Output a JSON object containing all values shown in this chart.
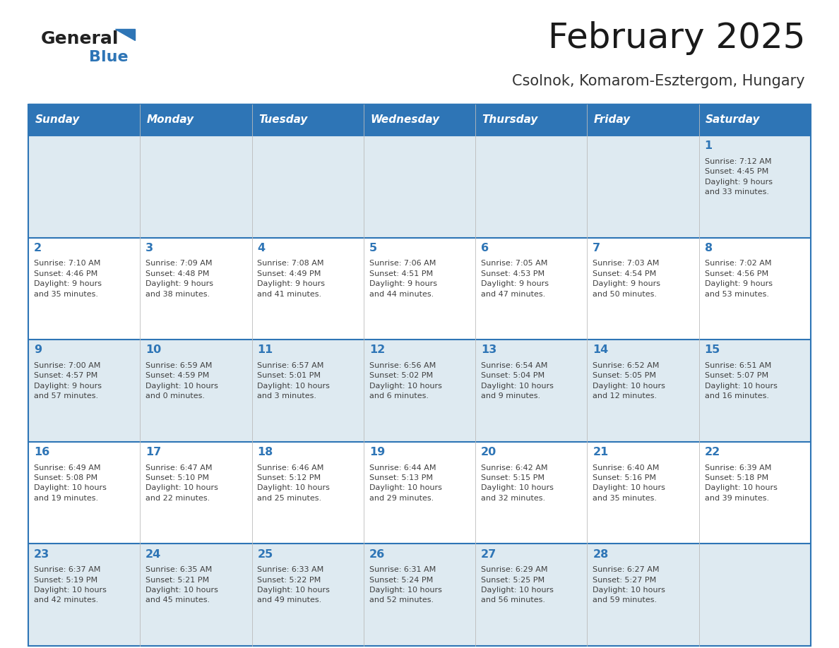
{
  "title": "February 2025",
  "subtitle": "Csolnok, Komarom-Esztergom, Hungary",
  "days_of_week": [
    "Sunday",
    "Monday",
    "Tuesday",
    "Wednesday",
    "Thursday",
    "Friday",
    "Saturday"
  ],
  "header_bg": "#2E75B6",
  "header_text_color": "#FFFFFF",
  "row_odd_bg": "#DEEAF1",
  "row_even_bg": "#FFFFFF",
  "border_color": "#2E75B6",
  "day_number_color": "#2E75B6",
  "info_text_color": "#404040",
  "title_color": "#1a1a1a",
  "subtitle_color": "#333333",
  "calendar_data": [
    [
      {
        "day": null,
        "info": ""
      },
      {
        "day": null,
        "info": ""
      },
      {
        "day": null,
        "info": ""
      },
      {
        "day": null,
        "info": ""
      },
      {
        "day": null,
        "info": ""
      },
      {
        "day": null,
        "info": ""
      },
      {
        "day": 1,
        "info": "Sunrise: 7:12 AM\nSunset: 4:45 PM\nDaylight: 9 hours\nand 33 minutes."
      }
    ],
    [
      {
        "day": 2,
        "info": "Sunrise: 7:10 AM\nSunset: 4:46 PM\nDaylight: 9 hours\nand 35 minutes."
      },
      {
        "day": 3,
        "info": "Sunrise: 7:09 AM\nSunset: 4:48 PM\nDaylight: 9 hours\nand 38 minutes."
      },
      {
        "day": 4,
        "info": "Sunrise: 7:08 AM\nSunset: 4:49 PM\nDaylight: 9 hours\nand 41 minutes."
      },
      {
        "day": 5,
        "info": "Sunrise: 7:06 AM\nSunset: 4:51 PM\nDaylight: 9 hours\nand 44 minutes."
      },
      {
        "day": 6,
        "info": "Sunrise: 7:05 AM\nSunset: 4:53 PM\nDaylight: 9 hours\nand 47 minutes."
      },
      {
        "day": 7,
        "info": "Sunrise: 7:03 AM\nSunset: 4:54 PM\nDaylight: 9 hours\nand 50 minutes."
      },
      {
        "day": 8,
        "info": "Sunrise: 7:02 AM\nSunset: 4:56 PM\nDaylight: 9 hours\nand 53 minutes."
      }
    ],
    [
      {
        "day": 9,
        "info": "Sunrise: 7:00 AM\nSunset: 4:57 PM\nDaylight: 9 hours\nand 57 minutes."
      },
      {
        "day": 10,
        "info": "Sunrise: 6:59 AM\nSunset: 4:59 PM\nDaylight: 10 hours\nand 0 minutes."
      },
      {
        "day": 11,
        "info": "Sunrise: 6:57 AM\nSunset: 5:01 PM\nDaylight: 10 hours\nand 3 minutes."
      },
      {
        "day": 12,
        "info": "Sunrise: 6:56 AM\nSunset: 5:02 PM\nDaylight: 10 hours\nand 6 minutes."
      },
      {
        "day": 13,
        "info": "Sunrise: 6:54 AM\nSunset: 5:04 PM\nDaylight: 10 hours\nand 9 minutes."
      },
      {
        "day": 14,
        "info": "Sunrise: 6:52 AM\nSunset: 5:05 PM\nDaylight: 10 hours\nand 12 minutes."
      },
      {
        "day": 15,
        "info": "Sunrise: 6:51 AM\nSunset: 5:07 PM\nDaylight: 10 hours\nand 16 minutes."
      }
    ],
    [
      {
        "day": 16,
        "info": "Sunrise: 6:49 AM\nSunset: 5:08 PM\nDaylight: 10 hours\nand 19 minutes."
      },
      {
        "day": 17,
        "info": "Sunrise: 6:47 AM\nSunset: 5:10 PM\nDaylight: 10 hours\nand 22 minutes."
      },
      {
        "day": 18,
        "info": "Sunrise: 6:46 AM\nSunset: 5:12 PM\nDaylight: 10 hours\nand 25 minutes."
      },
      {
        "day": 19,
        "info": "Sunrise: 6:44 AM\nSunset: 5:13 PM\nDaylight: 10 hours\nand 29 minutes."
      },
      {
        "day": 20,
        "info": "Sunrise: 6:42 AM\nSunset: 5:15 PM\nDaylight: 10 hours\nand 32 minutes."
      },
      {
        "day": 21,
        "info": "Sunrise: 6:40 AM\nSunset: 5:16 PM\nDaylight: 10 hours\nand 35 minutes."
      },
      {
        "day": 22,
        "info": "Sunrise: 6:39 AM\nSunset: 5:18 PM\nDaylight: 10 hours\nand 39 minutes."
      }
    ],
    [
      {
        "day": 23,
        "info": "Sunrise: 6:37 AM\nSunset: 5:19 PM\nDaylight: 10 hours\nand 42 minutes."
      },
      {
        "day": 24,
        "info": "Sunrise: 6:35 AM\nSunset: 5:21 PM\nDaylight: 10 hours\nand 45 minutes."
      },
      {
        "day": 25,
        "info": "Sunrise: 6:33 AM\nSunset: 5:22 PM\nDaylight: 10 hours\nand 49 minutes."
      },
      {
        "day": 26,
        "info": "Sunrise: 6:31 AM\nSunset: 5:24 PM\nDaylight: 10 hours\nand 52 minutes."
      },
      {
        "day": 27,
        "info": "Sunrise: 6:29 AM\nSunset: 5:25 PM\nDaylight: 10 hours\nand 56 minutes."
      },
      {
        "day": 28,
        "info": "Sunrise: 6:27 AM\nSunset: 5:27 PM\nDaylight: 10 hours\nand 59 minutes."
      },
      {
        "day": null,
        "info": ""
      }
    ]
  ],
  "figsize": [
    11.88,
    9.18
  ],
  "dpi": 100
}
